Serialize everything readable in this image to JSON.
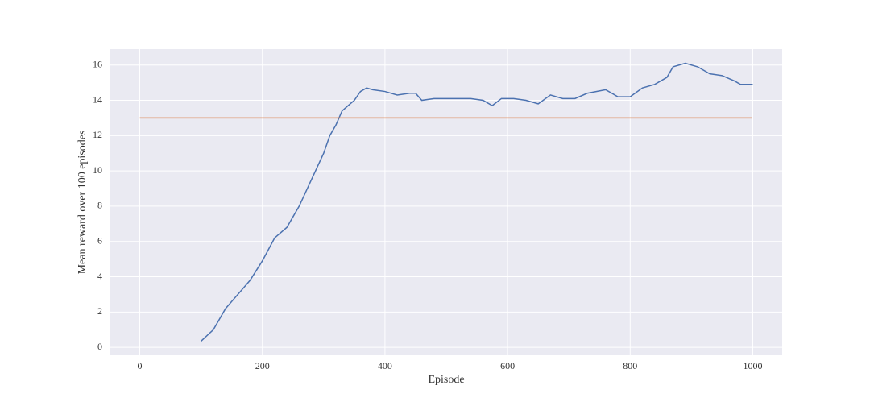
{
  "chart_data": {
    "type": "line",
    "x_label": "Episode",
    "y_label": "Mean reward over 100 episodes",
    "xlim": [
      -48,
      1048
    ],
    "ylim": [
      -0.45,
      16.9
    ],
    "xticks": [
      0,
      200,
      400,
      600,
      800,
      1000
    ],
    "yticks": [
      0,
      2,
      4,
      6,
      8,
      10,
      12,
      14,
      16
    ],
    "grid": true,
    "background": "#eaeaf2",
    "series": [
      {
        "color": "#4c72b0",
        "x": [
          100,
          120,
          140,
          160,
          180,
          200,
          220,
          240,
          260,
          280,
          300,
          310,
          320,
          330,
          340,
          350,
          360,
          370,
          380,
          400,
          420,
          440,
          450,
          460,
          480,
          500,
          520,
          540,
          560,
          575,
          590,
          610,
          630,
          650,
          670,
          690,
          710,
          730,
          760,
          780,
          800,
          820,
          840,
          860,
          870,
          890,
          910,
          930,
          950,
          970,
          980,
          1000
        ],
        "values": [
          0.35,
          1.0,
          2.2,
          3.0,
          3.8,
          4.9,
          6.2,
          6.8,
          8.0,
          9.5,
          11.0,
          12.0,
          12.6,
          13.4,
          13.7,
          14.0,
          14.5,
          14.7,
          14.6,
          14.5,
          14.3,
          14.4,
          14.4,
          14.0,
          14.1,
          14.1,
          14.1,
          14.1,
          14.0,
          13.7,
          14.1,
          14.1,
          14.0,
          13.8,
          14.3,
          14.1,
          14.1,
          14.4,
          14.6,
          14.2,
          14.2,
          14.7,
          14.9,
          15.3,
          15.9,
          16.1,
          15.9,
          15.5,
          15.4,
          15.1,
          14.9,
          14.9
        ]
      },
      {
        "color": "#dd8452",
        "x": [
          0,
          999
        ],
        "values": [
          13,
          13
        ]
      }
    ]
  }
}
